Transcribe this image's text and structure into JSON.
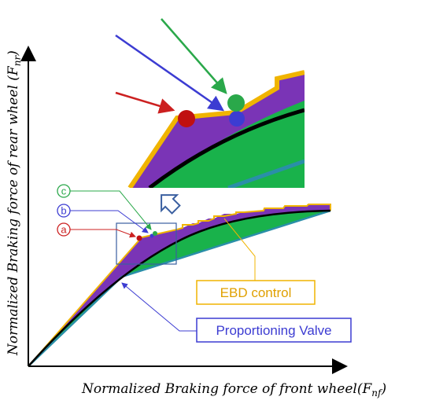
{
  "axes": {
    "x_label": {
      "main": "Normalized Braking force of front wheel(",
      "sym": "F",
      "sub": "nf",
      "close": ")"
    },
    "y_label": {
      "main": "Normalized Braking force of rear wheel (",
      "sym": "F",
      "sub": "nr",
      "close": ")"
    }
  },
  "callouts": {
    "ebd": {
      "label": "EBD control",
      "color": "#f0b400"
    },
    "pv": {
      "label": "Proportioning Valve",
      "color": "#3c3cd2"
    }
  },
  "markers": [
    {
      "letter": "c",
      "color": "#2aa84a"
    },
    {
      "letter": "b",
      "color": "#3c3cd2"
    },
    {
      "letter": "a",
      "color": "#cc2020"
    }
  ],
  "colors": {
    "ideal_curve": "#000000",
    "region_green": "#19b24b",
    "region_purple": "#7a34b6",
    "ebd_line": "#f0b400",
    "pv_line": "#2a8fa8"
  }
}
